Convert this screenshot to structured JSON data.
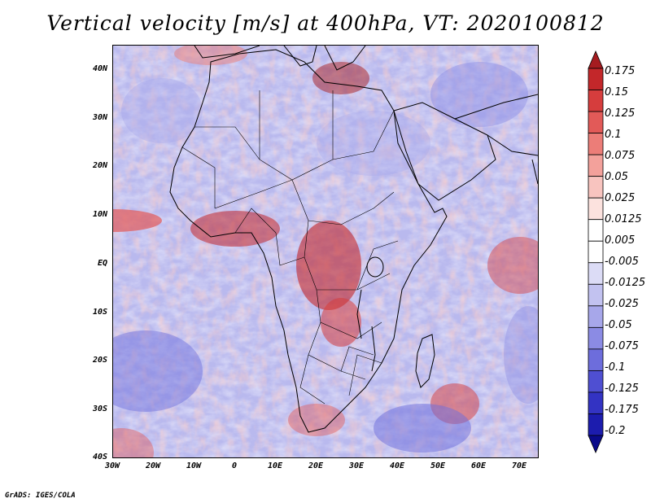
{
  "title": "Vertical velocity [m/s] at 400hPa, VT: 2020100812",
  "credit": "GrADS: IGES/COLA",
  "map": {
    "latitude_labels": [
      "40N",
      "30N",
      "20N",
      "10N",
      "EQ",
      "10S",
      "20S",
      "30S",
      "40S"
    ],
    "longitude_labels": [
      "30W",
      "20W",
      "10W",
      "0",
      "10E",
      "20E",
      "30E",
      "40E",
      "50E",
      "60E",
      "70E"
    ]
  },
  "colorbar": {
    "levels": [
      "0.175",
      "0.15",
      "0.125",
      "0.1",
      "0.075",
      "0.05",
      "0.025",
      "0.0125",
      "0.005",
      "-0.005",
      "-0.0125",
      "-0.025",
      "-0.05",
      "-0.075",
      "-0.1",
      "-0.125",
      "-0.175",
      "-0.2"
    ],
    "colors": [
      "#a51c20",
      "#c3272a",
      "#d63d3d",
      "#e25a58",
      "#ec7d78",
      "#f3a19b",
      "#f8c4bf",
      "#fce2de",
      "#ffffff",
      "#ffffff",
      "#dcdcf6",
      "#c2c2f0",
      "#a7a7ea",
      "#8b8be4",
      "#6d6ddc",
      "#4f4fd2",
      "#3333c3",
      "#1c1cae",
      "#0a0a8a"
    ]
  }
}
